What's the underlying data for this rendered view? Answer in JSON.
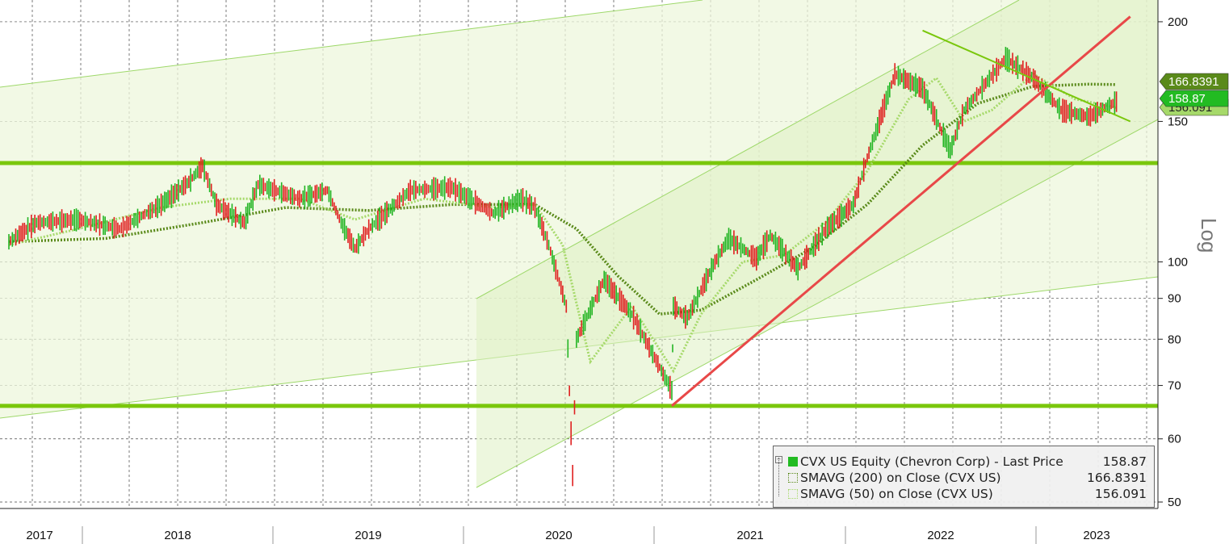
{
  "chart_data": {
    "type": "line",
    "scale": "log",
    "ylim": [
      50,
      210
    ],
    "yticks": [
      50,
      60,
      70,
      80,
      90,
      100,
      150,
      200
    ],
    "ytick_labels": [
      "50",
      "60",
      "70",
      "80",
      "90",
      "100",
      "150",
      "200"
    ],
    "scale_label": "Log",
    "x_years": [
      "2017",
      "2018",
      "2019",
      "2020",
      "2021",
      "2022",
      "2023"
    ],
    "grid": true,
    "legend_position": "bottom-right",
    "series": [
      {
        "name": "CVX US Equity (Chevron Corp) - Last Price",
        "value": "158.87",
        "color": "#22bb22",
        "x": [
          "2016-11",
          "2017-01",
          "2017-04",
          "2017-07",
          "2017-10",
          "2017-12",
          "2018-01",
          "2018-02",
          "2018-04",
          "2018-05",
          "2018-08",
          "2018-10",
          "2018-11",
          "2018-12",
          "2019-01",
          "2019-04",
          "2019-07",
          "2019-10",
          "2019-12",
          "2020-01",
          "2020-02",
          "2020-03-09",
          "2020-03-23",
          "2020-04",
          "2020-06",
          "2020-08",
          "2020-10-28",
          "2020-11",
          "2020-12",
          "2021-02",
          "2021-03",
          "2021-05",
          "2021-06",
          "2021-08",
          "2021-10",
          "2021-12",
          "2022-01",
          "2022-03",
          "2022-05",
          "2022-07",
          "2022-08",
          "2022-11",
          "2023-01",
          "2023-03",
          "2023-05",
          "2023-07"
        ],
        "y": [
          106,
          112,
          113,
          110,
          118,
          126,
          132,
          118,
          112,
          125,
          120,
          123,
          112,
          104,
          110,
          123,
          124,
          115,
          120,
          117,
          105,
          88,
          54,
          80,
          95,
          86,
          69,
          88,
          85,
          100,
          107,
          101,
          108,
          98,
          110,
          118,
          135,
          172,
          165,
          138,
          155,
          180,
          170,
          155,
          152,
          158.87
        ]
      },
      {
        "name": "SMAVG (200) on Close (CVX US)",
        "value": "166.8391",
        "color": "#5a8a1a",
        "x": [
          "2016-11",
          "2017-06",
          "2018-01",
          "2018-07",
          "2019-01",
          "2019-07",
          "2020-01",
          "2020-04",
          "2020-07",
          "2020-10",
          "2021-01",
          "2021-05",
          "2021-09",
          "2022-01",
          "2022-05",
          "2022-09",
          "2023-01",
          "2023-05",
          "2023-07"
        ],
        "y": [
          106,
          107,
          112,
          117,
          116,
          118,
          118,
          110,
          96,
          86,
          87,
          95,
          104,
          118,
          140,
          158,
          166,
          167,
          166.8391
        ]
      },
      {
        "name": "SMAVG (50) on Close (CVX US)",
        "value": "156.091",
        "color": "#a6d96a",
        "x": [
          "2016-11",
          "2017-04",
          "2017-10",
          "2018-03",
          "2018-08",
          "2018-12",
          "2019-05",
          "2019-10",
          "2020-01",
          "2020-03",
          "2020-05",
          "2020-08",
          "2020-11",
          "2021-01",
          "2021-04",
          "2021-07",
          "2021-10",
          "2022-01",
          "2022-04",
          "2022-06",
          "2022-08",
          "2022-10",
          "2023-01",
          "2023-04",
          "2023-07"
        ],
        "y": [
          105,
          110,
          117,
          120,
          120,
          113,
          120,
          117,
          118,
          105,
          75,
          88,
          73,
          86,
          100,
          102,
          112,
          130,
          160,
          170,
          150,
          155,
          172,
          160,
          156.091
        ]
      }
    ],
    "price_tags": [
      {
        "label": "166.8391",
        "value": 166.8391,
        "bg": "#5a8a1a",
        "fg": "#ffffff"
      },
      {
        "label": "158.87",
        "value": 158.87,
        "bg": "#22bb22",
        "fg": "#ffffff"
      },
      {
        "label": "156.091",
        "value": 156.091,
        "bg": "#a6d96a",
        "fg": "#222222"
      }
    ],
    "annotations": {
      "horizontal_levels": [
        133,
        66
      ],
      "red_trendline": {
        "from": [
          "2020-10-28",
          66
        ],
        "to": [
          "2023-08",
          203
        ]
      },
      "descending_line": {
        "from": [
          "2022-05",
          195
        ],
        "to": [
          "2023-08",
          150
        ]
      }
    }
  },
  "legend": {
    "rows": [
      {
        "label": "CVX US Equity (Chevron Corp)  - Last Price",
        "value": "158.87"
      },
      {
        "label": "SMAVG (200)  on Close (CVX US)",
        "value": "166.8391"
      },
      {
        "label": "SMAVG (50)  on Close (CVX US)",
        "value": "156.091"
      }
    ]
  }
}
